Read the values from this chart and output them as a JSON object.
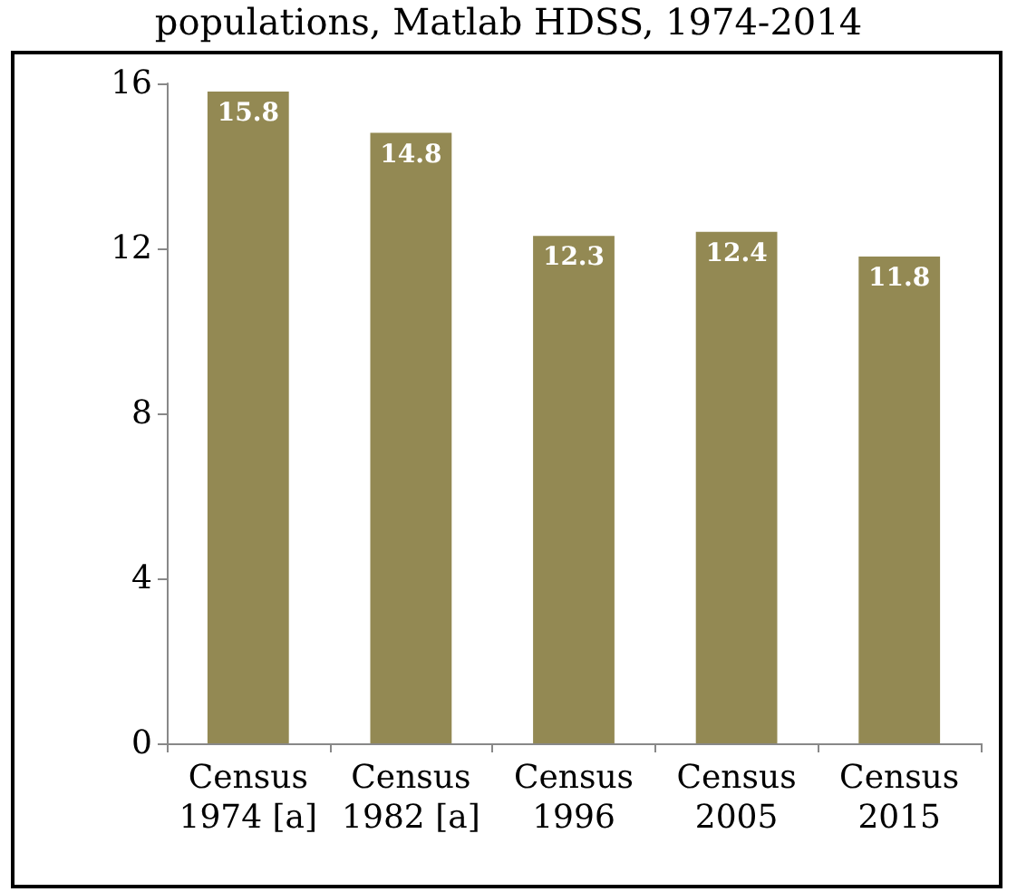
{
  "chart_data": {
    "type": "bar",
    "title": "populations, Matlab HDSS, 1974-2014",
    "categories": [
      "Census\n1974 [a]",
      "Census\n1982 [a]",
      "Census\n1996",
      "Census\n2005",
      "Census\n2015"
    ],
    "values": [
      15.8,
      14.8,
      12.3,
      12.4,
      11.8
    ],
    "color": "#938953",
    "ylim": [
      0,
      16
    ],
    "yticks": [
      0,
      4,
      8,
      12,
      16
    ],
    "grid": false,
    "data_labels": true
  }
}
